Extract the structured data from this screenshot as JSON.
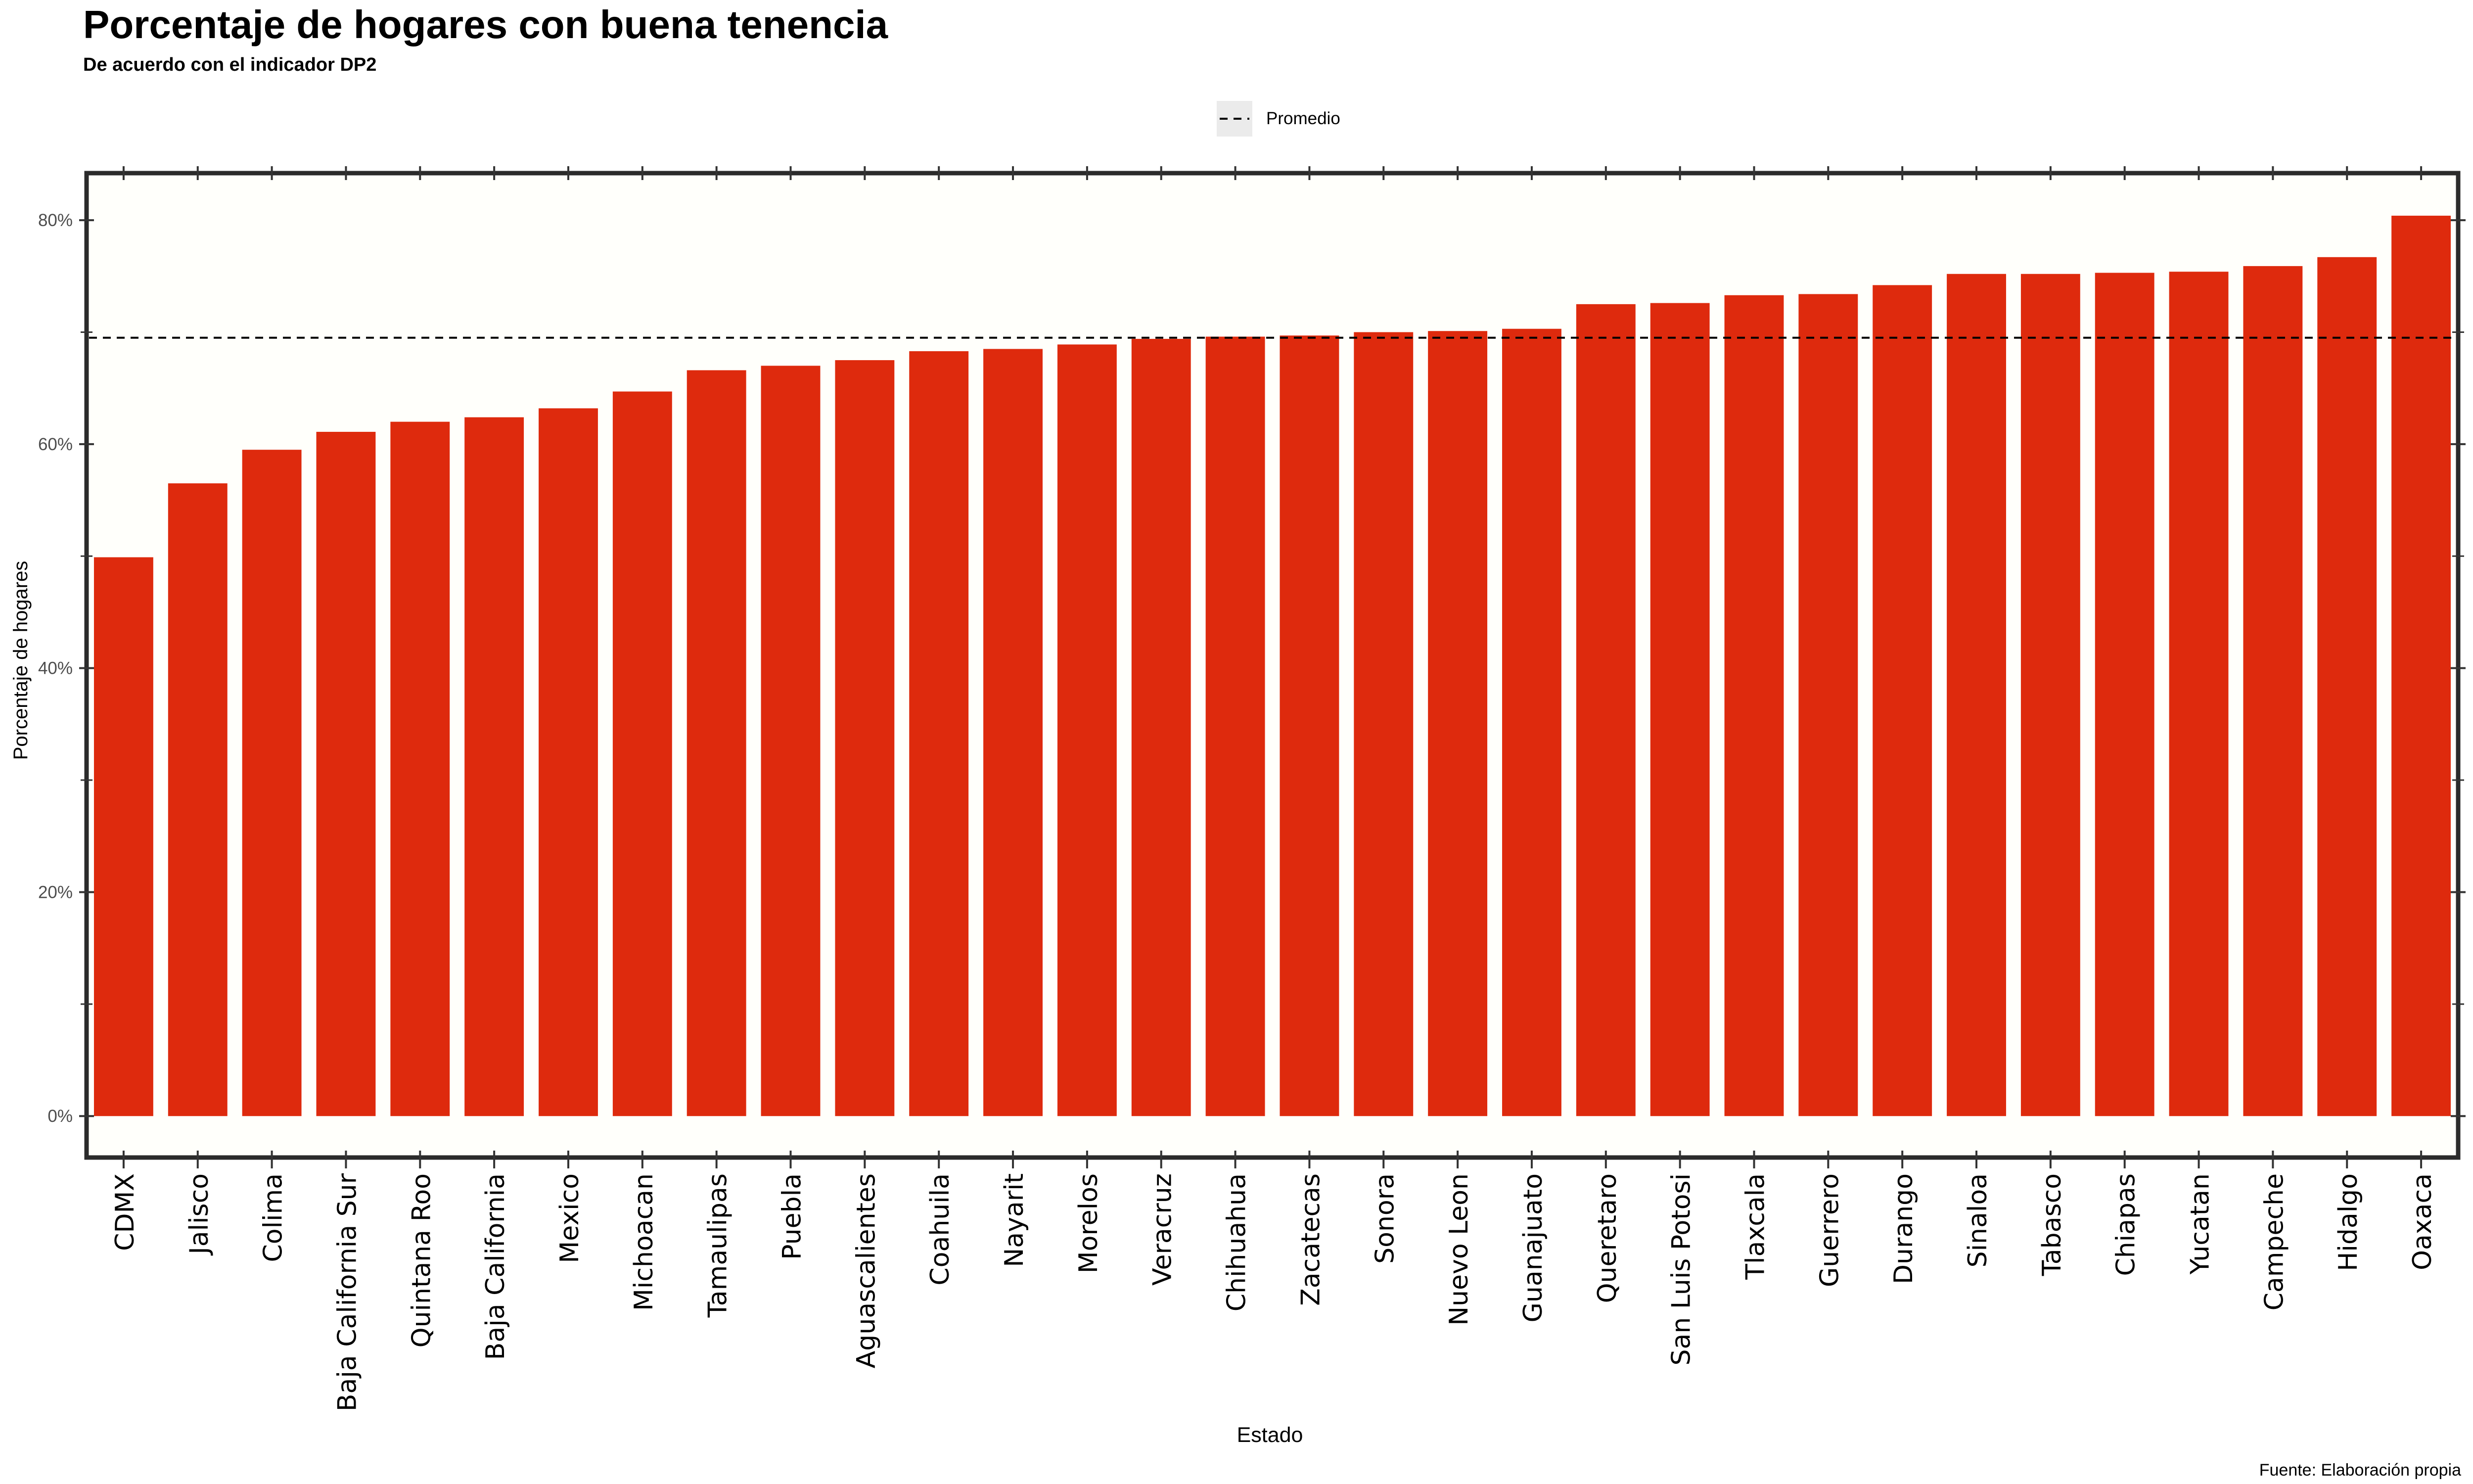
{
  "chart_data": {
    "type": "bar",
    "title": "Porcentaje de hogares con buena tenencia",
    "subtitle": "De acuerdo con el indicador DP2",
    "caption": "Fuente: Elaboración propia",
    "xlabel": "Estado",
    "ylabel": "Porcentaje de hogares",
    "ylim": [
      -3.7,
      84.2
    ],
    "yticks": [
      0,
      20,
      40,
      60,
      80
    ],
    "ytick_labels": [
      "0%",
      "20%",
      "40%",
      "60%",
      "80%"
    ],
    "legend": {
      "label": "Promedio",
      "placement": "top-center"
    },
    "reference_line": {
      "name": "Promedio",
      "value": 69.5,
      "style": "dashed"
    },
    "grid": false,
    "bar_color": "#de2a0d",
    "panel_background": "#fffffb",
    "categories": [
      "CDMX",
      "Jalisco",
      "Colima",
      "Baja California Sur",
      "Quintana Roo",
      "Baja California",
      "Mexico",
      "Michoacan",
      "Tamaulipas",
      "Puebla",
      "Aguascalientes",
      "Coahuila",
      "Nayarit",
      "Morelos",
      "Veracruz",
      "Chihuahua",
      "Zacatecas",
      "Sonora",
      "Nuevo Leon",
      "Guanajuato",
      "Queretaro",
      "San Luis Potosi",
      "Tlaxcala",
      "Guerrero",
      "Durango",
      "Sinaloa",
      "Tabasco",
      "Chiapas",
      "Yucatan",
      "Campeche",
      "Hidalgo",
      "Oaxaca"
    ],
    "values": [
      49.9,
      56.5,
      59.5,
      61.1,
      62.0,
      62.4,
      63.2,
      64.7,
      66.6,
      67.0,
      67.5,
      68.3,
      68.5,
      68.9,
      69.4,
      69.6,
      69.7,
      70.0,
      70.1,
      70.3,
      72.5,
      72.6,
      73.3,
      73.4,
      74.2,
      75.2,
      75.2,
      75.3,
      75.4,
      75.9,
      76.7,
      80.4
    ]
  }
}
